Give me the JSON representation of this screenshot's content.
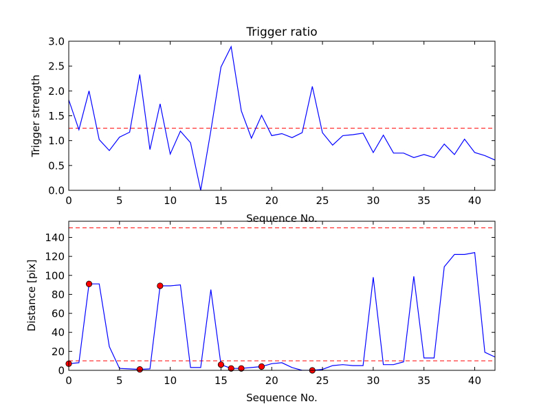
{
  "chart_data": [
    {
      "type": "line",
      "title": "Trigger ratio",
      "xlabel": "Sequence No.",
      "ylabel": "Trigger strength",
      "xlim": [
        0,
        42
      ],
      "ylim": [
        0,
        3.0
      ],
      "xticks": [
        "0",
        "5",
        "10",
        "15",
        "20",
        "25",
        "30",
        "35",
        "40"
      ],
      "yticks": [
        "0.0",
        "0.5",
        "1.0",
        "1.5",
        "2.0",
        "2.5",
        "3.0"
      ],
      "grid": false,
      "threshold": {
        "y": 1.25,
        "color": "#ff0000",
        "style": "dashed"
      },
      "series": [
        {
          "color": "#0000ff",
          "x": [
            0,
            1,
            2,
            3,
            4,
            5,
            6,
            7,
            8,
            9,
            10,
            11,
            12,
            13,
            14,
            15,
            16,
            17,
            18,
            19,
            20,
            21,
            22,
            23,
            24,
            25,
            26,
            27,
            28,
            29,
            30,
            31,
            32,
            33,
            34,
            35,
            36,
            37,
            38,
            39,
            40,
            41,
            42
          ],
          "y": [
            1.82,
            1.22,
            2.0,
            1.02,
            0.8,
            1.07,
            1.17,
            2.33,
            0.82,
            1.74,
            0.73,
            1.19,
            0.96,
            0.0,
            1.2,
            2.48,
            2.89,
            1.6,
            1.05,
            1.51,
            1.1,
            1.14,
            1.06,
            1.16,
            2.09,
            1.16,
            0.91,
            1.1,
            1.12,
            1.15,
            0.76,
            1.11,
            0.75,
            0.75,
            0.66,
            0.72,
            0.66,
            0.93,
            0.72,
            1.03,
            0.76,
            0.7,
            0.61
          ]
        }
      ]
    },
    {
      "type": "line",
      "title": "",
      "xlabel": "Sequence No.",
      "ylabel": "Distance [pix]",
      "xlim": [
        0,
        42
      ],
      "ylim": [
        0,
        157
      ],
      "xticks": [
        "0",
        "5",
        "10",
        "15",
        "20",
        "25",
        "30",
        "35",
        "40"
      ],
      "yticks": [
        "0",
        "20",
        "40",
        "60",
        "80",
        "100",
        "120",
        "140"
      ],
      "grid": false,
      "thresholds": [
        {
          "y": 10,
          "color": "#ff0000",
          "style": "dashed"
        },
        {
          "y": 150,
          "color": "#ff0000",
          "style": "dashed"
        }
      ],
      "series": [
        {
          "color": "#0000ff",
          "x": [
            0,
            1,
            2,
            3,
            4,
            5,
            6,
            7,
            8,
            9,
            10,
            11,
            12,
            13,
            14,
            15,
            16,
            17,
            18,
            19,
            20,
            21,
            22,
            23,
            24,
            25,
            26,
            27,
            28,
            29,
            30,
            31,
            32,
            33,
            34,
            35,
            36,
            37,
            38,
            39,
            40,
            41,
            42
          ],
          "y": [
            7,
            8,
            91,
            91,
            25,
            2,
            1.5,
            1,
            1.5,
            89,
            89,
            90,
            3,
            3,
            85,
            6,
            2,
            2,
            3,
            4,
            7,
            8,
            3,
            0,
            0,
            1,
            5,
            6,
            5,
            5,
            98,
            6,
            6,
            9,
            99,
            13,
            13,
            109,
            122,
            122,
            124,
            19,
            14
          ]
        }
      ],
      "markers": {
        "color": "#ff0000",
        "x": [
          0,
          2,
          7,
          9,
          15,
          16,
          17,
          19,
          24
        ],
        "y": [
          7,
          91,
          1,
          89,
          6,
          2,
          2,
          4,
          0
        ]
      }
    }
  ]
}
